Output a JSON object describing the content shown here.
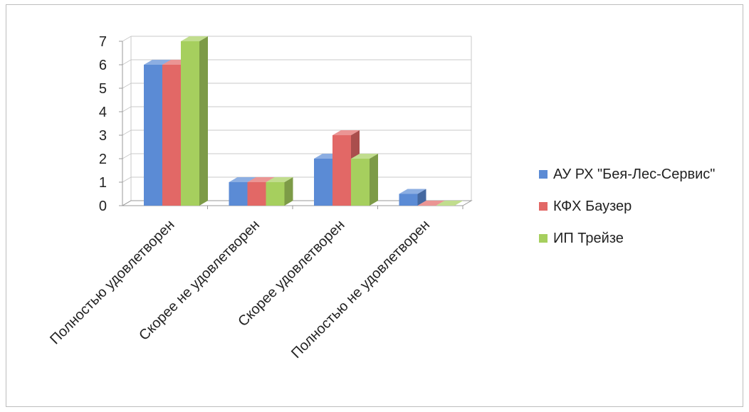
{
  "chart_data": {
    "type": "bar",
    "style": "3d-clustered-column",
    "categories": [
      "Полностью удовлетворен",
      "Скорее не удовлетворен",
      "Скорее удовлетворен",
      "Полностью не удовлетворен"
    ],
    "series": [
      {
        "name": "АУ РХ \"Бея-Лес-Сервис\"",
        "values": [
          6,
          1,
          2,
          0.5
        ],
        "color": "#5B8BD5"
      },
      {
        "name": "КФХ Баузер",
        "values": [
          6,
          1,
          3,
          0
        ],
        "color": "#E26866"
      },
      {
        "name": "ИП Трейзе",
        "values": [
          7,
          1,
          2,
          0
        ],
        "color": "#A6CF5E"
      }
    ],
    "yticks": [
      "0",
      "1",
      "2",
      "3",
      "4",
      "5",
      "6",
      "7"
    ],
    "ylim": [
      0,
      7
    ],
    "grid": true,
    "legend_position": "right"
  }
}
